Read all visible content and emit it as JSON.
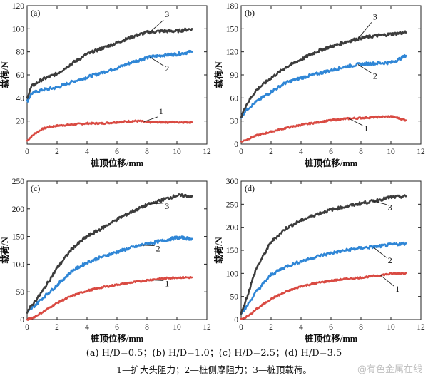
{
  "colors": {
    "curve1": "#d94a42",
    "curve2": "#2f86d6",
    "curve3": "#3c3c3c",
    "axis": "#222222"
  },
  "caption_line1": "(a) H/D=0.5；(b) H/D=1.0；(c) H/D=2.5；(d) H/D=3.5",
  "caption_line2": "1—扩大头阻力；2—桩侧摩阻力；3—桩顶载荷。",
  "watermark": "@有色金属在线",
  "chart_data": [
    {
      "type": "line",
      "panel": "(a)",
      "xlabel": "桩顶位移/mm",
      "ylabel": "载荷/N",
      "xlim": [
        0,
        12
      ],
      "ylim": [
        0,
        120
      ],
      "xticks": [
        0,
        2,
        4,
        6,
        8,
        10,
        12
      ],
      "yticks": [
        20,
        40,
        60,
        80,
        100,
        120
      ],
      "series": [
        {
          "name": "1",
          "x": [
            0,
            0.5,
            1,
            1.5,
            2,
            3,
            4,
            5,
            6,
            7,
            7.5,
            8,
            9,
            10,
            11
          ],
          "y": [
            3,
            9,
            13,
            15,
            16,
            17,
            18,
            18,
            19,
            20,
            20,
            19,
            19,
            19,
            19
          ]
        },
        {
          "name": "2",
          "x": [
            0,
            0.3,
            1,
            2,
            3,
            4,
            5,
            6,
            7,
            8,
            9,
            10,
            10.5,
            11
          ],
          "y": [
            37,
            44,
            47,
            49,
            54,
            58,
            62,
            66,
            71,
            75,
            77,
            78,
            79,
            80
          ]
        },
        {
          "name": "3",
          "x": [
            0,
            0.3,
            1,
            2,
            3,
            4,
            5,
            6,
            7,
            8,
            9,
            10,
            10.5,
            11
          ],
          "y": [
            40,
            50,
            56,
            61,
            70,
            78,
            83,
            88,
            93,
            97,
            98,
            98,
            99,
            100
          ]
        }
      ],
      "labels": [
        {
          "text": "1",
          "x": 8.8,
          "y": 26
        },
        {
          "text": "2",
          "x": 9.2,
          "y": 63
        },
        {
          "text": "3",
          "x": 9.2,
          "y": 110
        }
      ]
    },
    {
      "type": "line",
      "panel": "(b)",
      "xlabel": "桩顶位移/mm",
      "ylabel": "载荷/N",
      "xlim": [
        0,
        12
      ],
      "ylim": [
        0,
        180
      ],
      "xticks": [
        0,
        2,
        4,
        6,
        8,
        10,
        12
      ],
      "yticks": [
        0,
        30,
        60,
        90,
        120,
        150,
        180
      ],
      "series": [
        {
          "name": "1",
          "x": [
            0,
            0.5,
            1,
            2,
            3,
            4,
            5,
            6,
            7,
            8,
            9,
            10,
            10.5,
            11
          ],
          "y": [
            3,
            7,
            11,
            16,
            21,
            25,
            28,
            31,
            33,
            34,
            35,
            36,
            34,
            31
          ]
        },
        {
          "name": "2",
          "x": [
            0,
            0.3,
            1,
            2,
            3,
            4,
            5,
            6,
            7,
            8,
            9,
            10,
            10.5,
            11
          ],
          "y": [
            35,
            44,
            55,
            68,
            80,
            86,
            91,
            96,
            101,
            104,
            105,
            106,
            110,
            115
          ]
        },
        {
          "name": "3",
          "x": [
            0,
            0.3,
            1,
            2,
            3,
            4,
            5,
            6,
            7,
            8,
            9,
            10,
            10.5,
            11
          ],
          "y": [
            35,
            50,
            70,
            86,
            100,
            110,
            120,
            127,
            133,
            138,
            141,
            143,
            144,
            145
          ]
        }
      ],
      "labels": [
        {
          "text": "1",
          "x": 8.2,
          "y": 17
        },
        {
          "text": "2",
          "x": 8.8,
          "y": 85
        },
        {
          "text": "3",
          "x": 8.8,
          "y": 162
        }
      ]
    },
    {
      "type": "line",
      "panel": "(c)",
      "xlabel": "桩顶位移/mm",
      "ylabel": "载荷/N",
      "xlim": [
        0,
        12
      ],
      "ylim": [
        0,
        250
      ],
      "xticks": [
        0,
        2,
        4,
        6,
        8,
        10,
        12
      ],
      "yticks": [
        0,
        50,
        100,
        150,
        200,
        250
      ],
      "series": [
        {
          "name": "1",
          "x": [
            0,
            0.5,
            1,
            2,
            3,
            4,
            5,
            6,
            7,
            8,
            9,
            10,
            11
          ],
          "y": [
            0,
            5,
            13,
            30,
            43,
            52,
            58,
            63,
            67,
            71,
            74,
            76,
            76
          ]
        },
        {
          "name": "2",
          "x": [
            0,
            0.3,
            1,
            2,
            3,
            4,
            5,
            6,
            7,
            8,
            9,
            10,
            11
          ],
          "y": [
            12,
            20,
            38,
            62,
            88,
            103,
            113,
            122,
            130,
            137,
            142,
            148,
            146
          ]
        },
        {
          "name": "3",
          "x": [
            0,
            0.3,
            1,
            2,
            3,
            4,
            5,
            6,
            7,
            8,
            9,
            10,
            11
          ],
          "y": [
            14,
            25,
            50,
            93,
            128,
            150,
            165,
            181,
            195,
            207,
            216,
            224,
            223
          ]
        }
      ],
      "labels": [
        {
          "text": "1",
          "x": 9.2,
          "y": 60
        },
        {
          "text": "2",
          "x": 8.6,
          "y": 123
        },
        {
          "text": "3",
          "x": 9.2,
          "y": 200
        }
      ]
    },
    {
      "type": "line",
      "panel": "(d)",
      "xlabel": "桩顶位移/mm",
      "ylabel": "载荷/N",
      "xlim": [
        0,
        12
      ],
      "ylim": [
        0,
        300
      ],
      "xticks": [
        0,
        2,
        4,
        6,
        8,
        10,
        12
      ],
      "yticks": [
        0,
        50,
        100,
        150,
        200,
        250,
        300
      ],
      "series": [
        {
          "name": "1",
          "x": [
            0,
            0.5,
            1,
            2,
            3,
            4,
            5,
            6,
            7,
            8,
            9,
            10,
            11
          ],
          "y": [
            0,
            8,
            22,
            45,
            60,
            72,
            79,
            84,
            88,
            91,
            95,
            99,
            101
          ]
        },
        {
          "name": "2",
          "x": [
            0,
            0.3,
            1,
            2,
            3,
            4,
            5,
            6,
            7,
            8,
            9,
            10,
            11
          ],
          "y": [
            15,
            25,
            60,
            97,
            115,
            126,
            136,
            144,
            150,
            155,
            158,
            162,
            165
          ]
        },
        {
          "name": "3",
          "x": [
            0,
            0.3,
            1,
            2,
            3,
            4,
            5,
            6,
            7,
            8,
            9,
            10,
            11
          ],
          "y": [
            15,
            40,
            110,
            168,
            198,
            215,
            228,
            238,
            245,
            252,
            258,
            265,
            267
          ]
        }
      ],
      "labels": [
        {
          "text": "1",
          "x": 10.3,
          "y": 60
        },
        {
          "text": "2",
          "x": 9.8,
          "y": 122
        },
        {
          "text": "3",
          "x": 9.8,
          "y": 237
        }
      ]
    }
  ]
}
